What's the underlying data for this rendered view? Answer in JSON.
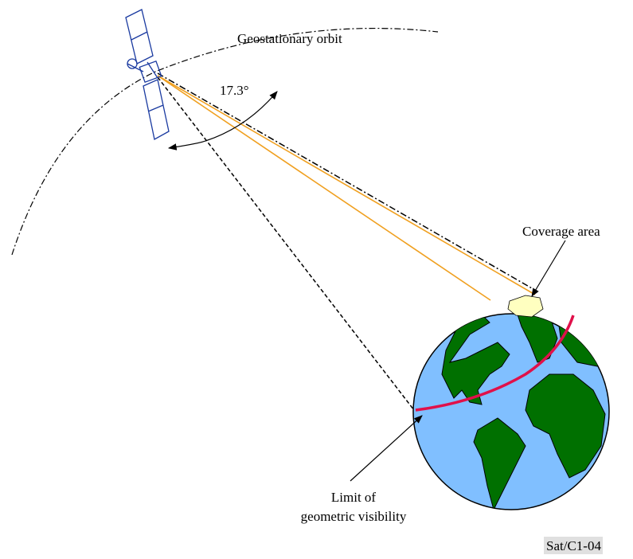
{
  "labels": {
    "orbit": "Geostationary orbit",
    "angle": "17.3°",
    "coverage": "Coverage area",
    "limit": [
      "Limit of",
      "geometric visibility"
    ],
    "figure_id": "Sat/C1-04"
  }
}
